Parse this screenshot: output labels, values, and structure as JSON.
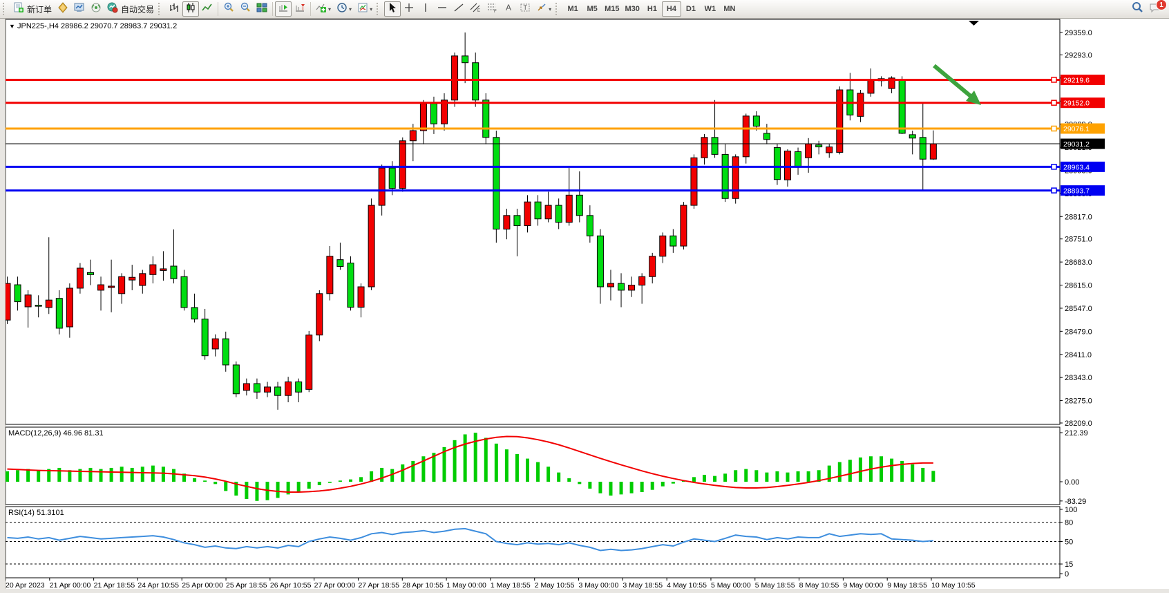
{
  "toolbar": {
    "new_order_label": "新订单",
    "autotrading_label": "自动交易",
    "timeframes": [
      "M1",
      "M5",
      "M15",
      "M30",
      "H1",
      "H4",
      "D1",
      "W1",
      "MN"
    ],
    "active_timeframe": "H4",
    "notification_count": "1"
  },
  "header": {
    "collapse_icon": "▼",
    "title": "JPN225-,H4",
    "ohlc": "28986.2 29070.7 28983.7 29031.2"
  },
  "macd_panel": {
    "label": "MACD(12,26,9) 46.96 81.31"
  },
  "rsi_panel": {
    "label": "RSI(14) 51.3101"
  },
  "chart_data": {
    "type": "candlestick",
    "title": "JPN225-,H4",
    "current_bar": {
      "open": 28986.2,
      "high": 29070.7,
      "low": 28983.7,
      "close": 29031.2
    },
    "ylim": [
      28209.0,
      29359.0
    ],
    "y_ticks": [
      29359.0,
      29293.0,
      29225.0,
      29157.0,
      29089.0,
      29021.0,
      28953.0,
      28885.0,
      28817.0,
      28751.0,
      28683.0,
      28615.0,
      28547.0,
      28479.0,
      28411.0,
      28343.0,
      28275.0,
      28209.0
    ],
    "x_labels": [
      "20 Apr 2023",
      "21 Apr 00:00",
      "21 Apr 18:55",
      "24 Apr 10:55",
      "25 Apr 00:00",
      "25 Apr 18:55",
      "26 Apr 10:55",
      "27 Apr 00:00",
      "27 Apr 18:55",
      "28 Apr 10:55",
      "1 May 00:00",
      "1 May 18:55",
      "2 May 10:55",
      "3 May 00:00",
      "3 May 18:55",
      "4 May 10:55",
      "5 May 00:00",
      "5 May 18:55",
      "8 May 10:55",
      "9 May 00:00",
      "9 May 18:55",
      "10 May 10:55"
    ],
    "up_color": "#f20000",
    "down_color": "#00dd11",
    "candles": [
      [
        28512,
        28640,
        28500,
        28620
      ],
      [
        28616,
        28640,
        28540,
        28566
      ],
      [
        28551,
        28600,
        28490,
        28586
      ],
      [
        28556,
        28585,
        28520,
        28553
      ],
      [
        28549,
        28756,
        28530,
        28571
      ],
      [
        28576,
        28600,
        28470,
        28488
      ],
      [
        28492,
        28620,
        28460,
        28606
      ],
      [
        28606,
        28680,
        28590,
        28665
      ],
      [
        28652,
        28690,
        28615,
        28646
      ],
      [
        28600,
        28640,
        28540,
        28616
      ],
      [
        28608,
        28690,
        28535,
        28612
      ],
      [
        28590,
        28650,
        28560,
        28640
      ],
      [
        28630,
        28675,
        28600,
        28638
      ],
      [
        28614,
        28660,
        28590,
        28649
      ],
      [
        28646,
        28700,
        28620,
        28675
      ],
      [
        28658,
        28715,
        28628,
        28663
      ],
      [
        28671,
        28779,
        28620,
        28634
      ],
      [
        28640,
        28660,
        28540,
        28549
      ],
      [
        28549,
        28590,
        28505,
        28515
      ],
      [
        28515,
        28545,
        28395,
        28407
      ],
      [
        28427,
        28470,
        28405,
        28457
      ],
      [
        28457,
        28478,
        28360,
        28380
      ],
      [
        28380,
        28390,
        28285,
        28295
      ],
      [
        28305,
        28340,
        28290,
        28325
      ],
      [
        28325,
        28340,
        28280,
        28300
      ],
      [
        28300,
        28330,
        28285,
        28315
      ],
      [
        28315,
        28330,
        28248,
        28290
      ],
      [
        28290,
        28345,
        28270,
        28330
      ],
      [
        28330,
        28340,
        28270,
        28300
      ],
      [
        28308,
        28480,
        28300,
        28468
      ],
      [
        28468,
        28600,
        28450,
        28590
      ],
      [
        28590,
        28730,
        28570,
        28700
      ],
      [
        28690,
        28740,
        28660,
        28670
      ],
      [
        28680,
        28700,
        28540,
        28550
      ],
      [
        28550,
        28620,
        28520,
        28610
      ],
      [
        28610,
        28870,
        28600,
        28850
      ],
      [
        28850,
        28970,
        28820,
        28960
      ],
      [
        28960,
        28980,
        28880,
        28900
      ],
      [
        28900,
        29050,
        28890,
        29040
      ],
      [
        29040,
        29090,
        28980,
        29070
      ],
      [
        29070,
        29160,
        29030,
        29150
      ],
      [
        29150,
        29170,
        29060,
        29090
      ],
      [
        29090,
        29180,
        29070,
        29160
      ],
      [
        29160,
        29300,
        29140,
        29290
      ],
      [
        29290,
        29359,
        29210,
        29270
      ],
      [
        29270,
        29300,
        29140,
        29160
      ],
      [
        29160,
        29180,
        29030,
        29050
      ],
      [
        29050,
        29070,
        28740,
        28780
      ],
      [
        28780,
        28840,
        28750,
        28820
      ],
      [
        28820,
        28840,
        28700,
        28790
      ],
      [
        28790,
        28880,
        28770,
        28860
      ],
      [
        28860,
        28880,
        28790,
        28810
      ],
      [
        28810,
        28890,
        28800,
        28850
      ],
      [
        28850,
        28870,
        28780,
        28800
      ],
      [
        28800,
        28960,
        28790,
        28880
      ],
      [
        28880,
        28950,
        28800,
        28820
      ],
      [
        28820,
        28850,
        28740,
        28760
      ],
      [
        28760,
        28780,
        28560,
        28610
      ],
      [
        28610,
        28660,
        28570,
        28620
      ],
      [
        28620,
        28650,
        28550,
        28600
      ],
      [
        28600,
        28640,
        28580,
        28615
      ],
      [
        28615,
        28650,
        28560,
        28640
      ],
      [
        28640,
        28710,
        28620,
        28700
      ],
      [
        28700,
        28770,
        28680,
        28760
      ],
      [
        28760,
        28780,
        28710,
        28730
      ],
      [
        28730,
        28860,
        28720,
        28850
      ],
      [
        28850,
        29000,
        28840,
        28990
      ],
      [
        28990,
        29060,
        28970,
        29050
      ],
      [
        29050,
        29160,
        28990,
        29000
      ],
      [
        29000,
        29030,
        28860,
        28870
      ],
      [
        28870,
        29000,
        28855,
        28993
      ],
      [
        28993,
        29120,
        28973,
        29113
      ],
      [
        29113,
        29127,
        29070,
        29083
      ],
      [
        29062,
        29090,
        29030,
        29044
      ],
      [
        29020,
        29030,
        28910,
        28926
      ],
      [
        28925,
        29015,
        28905,
        29010
      ],
      [
        29008,
        29020,
        28940,
        28962
      ],
      [
        28990,
        29048,
        28946,
        29031
      ],
      [
        29028,
        29040,
        29000,
        29022
      ],
      [
        29005,
        29030,
        28990,
        29022
      ],
      [
        29006,
        29200,
        29000,
        29190
      ],
      [
        29190,
        29240,
        29100,
        29116
      ],
      [
        29112,
        29190,
        29095,
        29180
      ],
      [
        29180,
        29253,
        29170,
        29219
      ],
      [
        29223,
        29230,
        29200,
        29217
      ],
      [
        29194,
        29230,
        29180,
        29225
      ],
      [
        29218,
        29230,
        29060,
        29062
      ],
      [
        29058,
        29070,
        29000,
        29048
      ],
      [
        29050,
        29152,
        28895,
        28986
      ],
      [
        28986.2,
        29070.7,
        28983.7,
        29031.2
      ]
    ],
    "price_lines": [
      {
        "value": 29219.6,
        "label": "29219.6",
        "color": "#f20000",
        "width": 3
      },
      {
        "value": 29152.0,
        "label": "29152.0",
        "color": "#f20000",
        "width": 3
      },
      {
        "value": 29076.1,
        "label": "29076.1",
        "color": "#ffa200",
        "width": 3
      },
      {
        "value": 29031.2,
        "label": "29031.2",
        "color": "#000000",
        "width": 1
      },
      {
        "value": 28963.4,
        "label": "28963.4",
        "color": "#0000f2",
        "width": 3
      },
      {
        "value": 28893.7,
        "label": "28893.7",
        "color": "#0000f2",
        "width": 3
      }
    ],
    "annotations": {
      "trend_arrow_color": "#3da33d",
      "shift_marker_color": "#000000"
    },
    "indicators": [
      {
        "name": "MACD",
        "params": "12,26,9",
        "values": "46.96 81.31",
        "ticks": [
          "212.39",
          "0.00",
          "-83.29"
        ],
        "tick_values": [
          212.39,
          0,
          -83.29
        ],
        "histogram_color": "#00cc00",
        "signal_color": "#f20000",
        "histogram": [
          45,
          50,
          55,
          50,
          55,
          60,
          50,
          55,
          60,
          55,
          60,
          65,
          60,
          65,
          70,
          65,
          55,
          35,
          15,
          5,
          -10,
          -40,
          -60,
          -75,
          -83,
          -80,
          -70,
          -55,
          -45,
          -30,
          -15,
          -5,
          5,
          10,
          20,
          45,
          60,
          55,
          75,
          90,
          110,
          125,
          150,
          180,
          205,
          212,
          190,
          165,
          140,
          120,
          100,
          85,
          65,
          40,
          15,
          -10,
          -30,
          -50,
          -60,
          -55,
          -50,
          -45,
          -35,
          -20,
          -8,
          5,
          20,
          30,
          25,
          35,
          50,
          55,
          50,
          40,
          45,
          40,
          45,
          45,
          50,
          70,
          85,
          95,
          105,
          110,
          110,
          100,
          90,
          75,
          60,
          47
        ],
        "signal": [
          55,
          53,
          51,
          49,
          48,
          47,
          46,
          45,
          44,
          43,
          42,
          41,
          40,
          39,
          38,
          37,
          34,
          30,
          26,
          20,
          12,
          2,
          -10,
          -20,
          -30,
          -37,
          -42,
          -45,
          -45,
          -43,
          -40,
          -35,
          -28,
          -20,
          -10,
          2,
          16,
          32,
          50,
          70,
          90,
          110,
          130,
          148,
          163,
          175,
          185,
          192,
          196,
          195,
          190,
          182,
          172,
          160,
          146,
          131,
          116,
          101,
          87,
          73,
          60,
          47,
          35,
          24,
          14,
          5,
          -3,
          -10,
          -16,
          -21,
          -25,
          -27,
          -27,
          -25,
          -21,
          -16,
          -10,
          -3,
          5,
          14,
          24,
          34,
          45,
          55,
          63,
          70,
          75,
          79,
          81,
          81
        ]
      },
      {
        "name": "RSI",
        "params": "14",
        "values": "51.3101",
        "ticks": [
          "100",
          "80",
          "50",
          "15",
          "0"
        ],
        "tick_values": [
          100,
          80,
          50,
          15,
          0
        ],
        "levels": [
          80,
          50,
          15
        ],
        "line_color": "#3e8ede",
        "series": [
          56,
          55,
          57,
          54,
          56,
          52,
          55,
          58,
          56,
          54,
          55,
          56,
          57,
          58,
          59,
          57,
          53,
          48,
          45,
          41,
          43,
          40,
          39,
          42,
          40,
          42,
          40,
          44,
          42,
          50,
          54,
          57,
          55,
          52,
          56,
          62,
          64,
          61,
          64,
          65,
          67,
          64,
          66,
          69,
          70,
          66,
          62,
          50,
          47,
          45,
          48,
          46,
          47,
          45,
          48,
          44,
          41,
          36,
          38,
          36,
          37,
          39,
          42,
          45,
          43,
          49,
          54,
          52,
          50,
          55,
          60,
          58,
          57,
          53,
          56,
          54,
          57,
          56,
          56,
          62,
          58,
          60,
          62,
          61,
          62,
          54,
          53,
          52,
          50,
          51.31
        ]
      }
    ]
  }
}
